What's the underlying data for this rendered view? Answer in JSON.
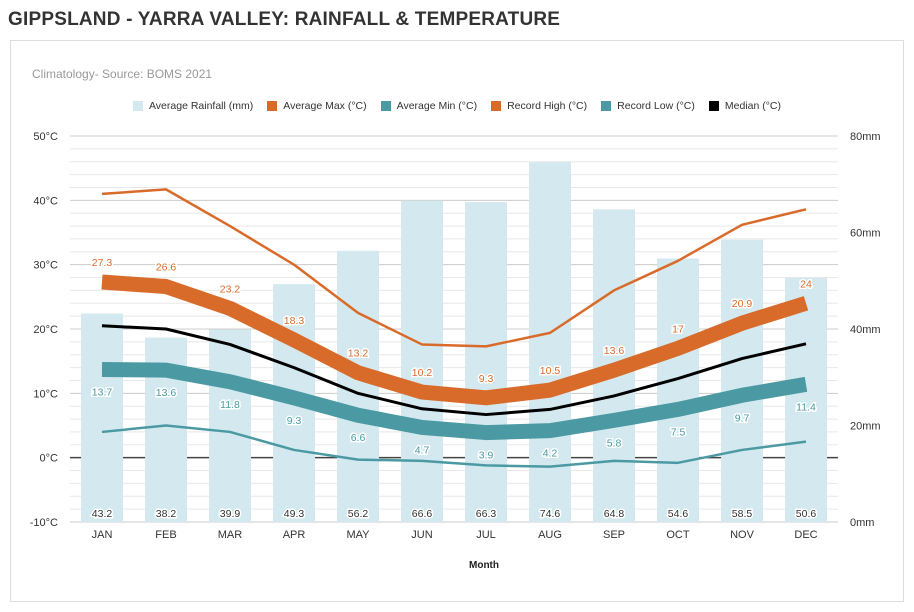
{
  "title": "GIPPSLAND - YARRA VALLEY: RAINFALL & TEMPERATURE",
  "subtitle": "Climatology- Source: BOMS 2021",
  "chart_data": {
    "type": "bar+line",
    "categories": [
      "JAN",
      "FEB",
      "MAR",
      "APR",
      "MAY",
      "JUN",
      "JUL",
      "AUG",
      "SEP",
      "OCT",
      "NOV",
      "DEC"
    ],
    "xlabel": "Month",
    "y_left": {
      "min": -10,
      "max": 50,
      "ticks": [
        "-10°C",
        "0°C",
        "10°C",
        "20°C",
        "30°C",
        "40°C",
        "50°C"
      ]
    },
    "y_right": {
      "min": 0,
      "max": 80,
      "ticks": [
        "0mm",
        "20mm",
        "40mm",
        "60mm",
        "80mm"
      ]
    },
    "grid": true,
    "legend_position": "top",
    "series": [
      {
        "name": "Average Rainfall (mm)",
        "type": "bar",
        "axis": "right",
        "color": "#d3e9ef",
        "values": [
          43.2,
          38.2,
          39.9,
          49.3,
          56.2,
          66.6,
          66.3,
          74.6,
          64.8,
          54.6,
          58.5,
          50.6
        ]
      },
      {
        "name": "Average Max (°C)",
        "type": "line",
        "axis": "left",
        "color": "#d96b2a",
        "thick": true,
        "values": [
          27.3,
          26.6,
          23.2,
          18.3,
          13.2,
          10.2,
          9.3,
          10.5,
          13.6,
          17,
          20.9,
          24
        ]
      },
      {
        "name": "Average Min (°C)",
        "type": "line",
        "axis": "left",
        "color": "#4b9aa3",
        "thick": true,
        "values": [
          13.7,
          13.6,
          11.8,
          9.3,
          6.6,
          4.7,
          3.9,
          4.2,
          5.8,
          7.5,
          9.7,
          11.4
        ]
      },
      {
        "name": "Record High (°C)",
        "type": "line",
        "axis": "left",
        "color": "#d96b2a",
        "values": [
          41,
          41.7,
          36,
          30,
          22.5,
          17.6,
          17.3,
          19.4,
          26,
          30.6,
          36.2,
          38.6
        ]
      },
      {
        "name": "Record Low (°C)",
        "type": "line",
        "axis": "left",
        "color": "#4b9aa3",
        "values": [
          4,
          5,
          4,
          1.2,
          -0.3,
          -0.5,
          -1.2,
          -1.4,
          -0.5,
          -0.8,
          1.2,
          2.5
        ]
      },
      {
        "name": "Median  (°C)",
        "type": "line",
        "axis": "left",
        "color": "#000000",
        "values": [
          20.5,
          20,
          17.6,
          14,
          10,
          7.6,
          6.7,
          7.5,
          9.6,
          12.3,
          15.4,
          17.7
        ]
      }
    ]
  }
}
